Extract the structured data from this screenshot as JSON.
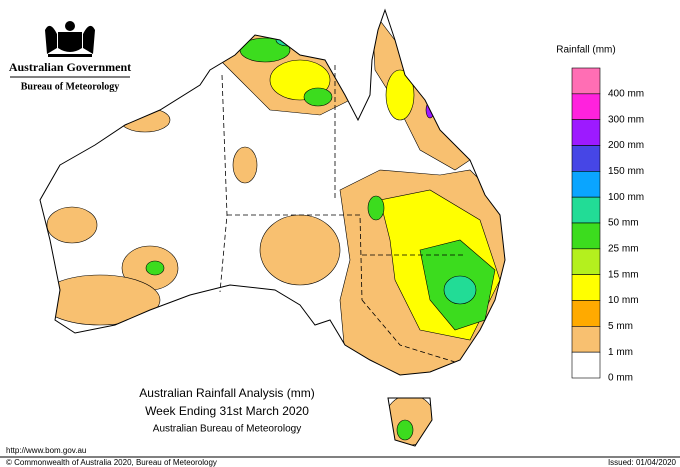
{
  "header": {
    "government": "Australian Government",
    "agency": "Bureau of Meteorology"
  },
  "legend": {
    "title": "Rainfall (mm)",
    "items": [
      {
        "label": "400 mm",
        "color": "#ff6eb4"
      },
      {
        "label": "300 mm",
        "color": "#ff22dd"
      },
      {
        "label": "200 mm",
        "color": "#9d1aff"
      },
      {
        "label": "150 mm",
        "color": "#4646e6"
      },
      {
        "label": "100 mm",
        "color": "#0aa5ff"
      },
      {
        "label": "50 mm",
        "color": "#22dc96"
      },
      {
        "label": "25 mm",
        "color": "#3cdc1e"
      },
      {
        "label": "15 mm",
        "color": "#b4f01e"
      },
      {
        "label": "10 mm",
        "color": "#ffff00"
      },
      {
        "label": "5 mm",
        "color": "#ffaa00"
      },
      {
        "label": "1 mm",
        "color": "#f8c070"
      },
      {
        "label": "0 mm",
        "color": "#ffffff"
      }
    ]
  },
  "map": {
    "title_lines": [
      "Australian Rainfall Analysis (mm)",
      "Week Ending 31st March 2020",
      "Australian Bureau of Meteorology"
    ]
  },
  "footer": {
    "url": "http://www.bom.gov.au",
    "copyright": "© Commonwealth of Australia 2020, Bureau of Meteorology",
    "issued": "Issued: 01/04/2020"
  }
}
